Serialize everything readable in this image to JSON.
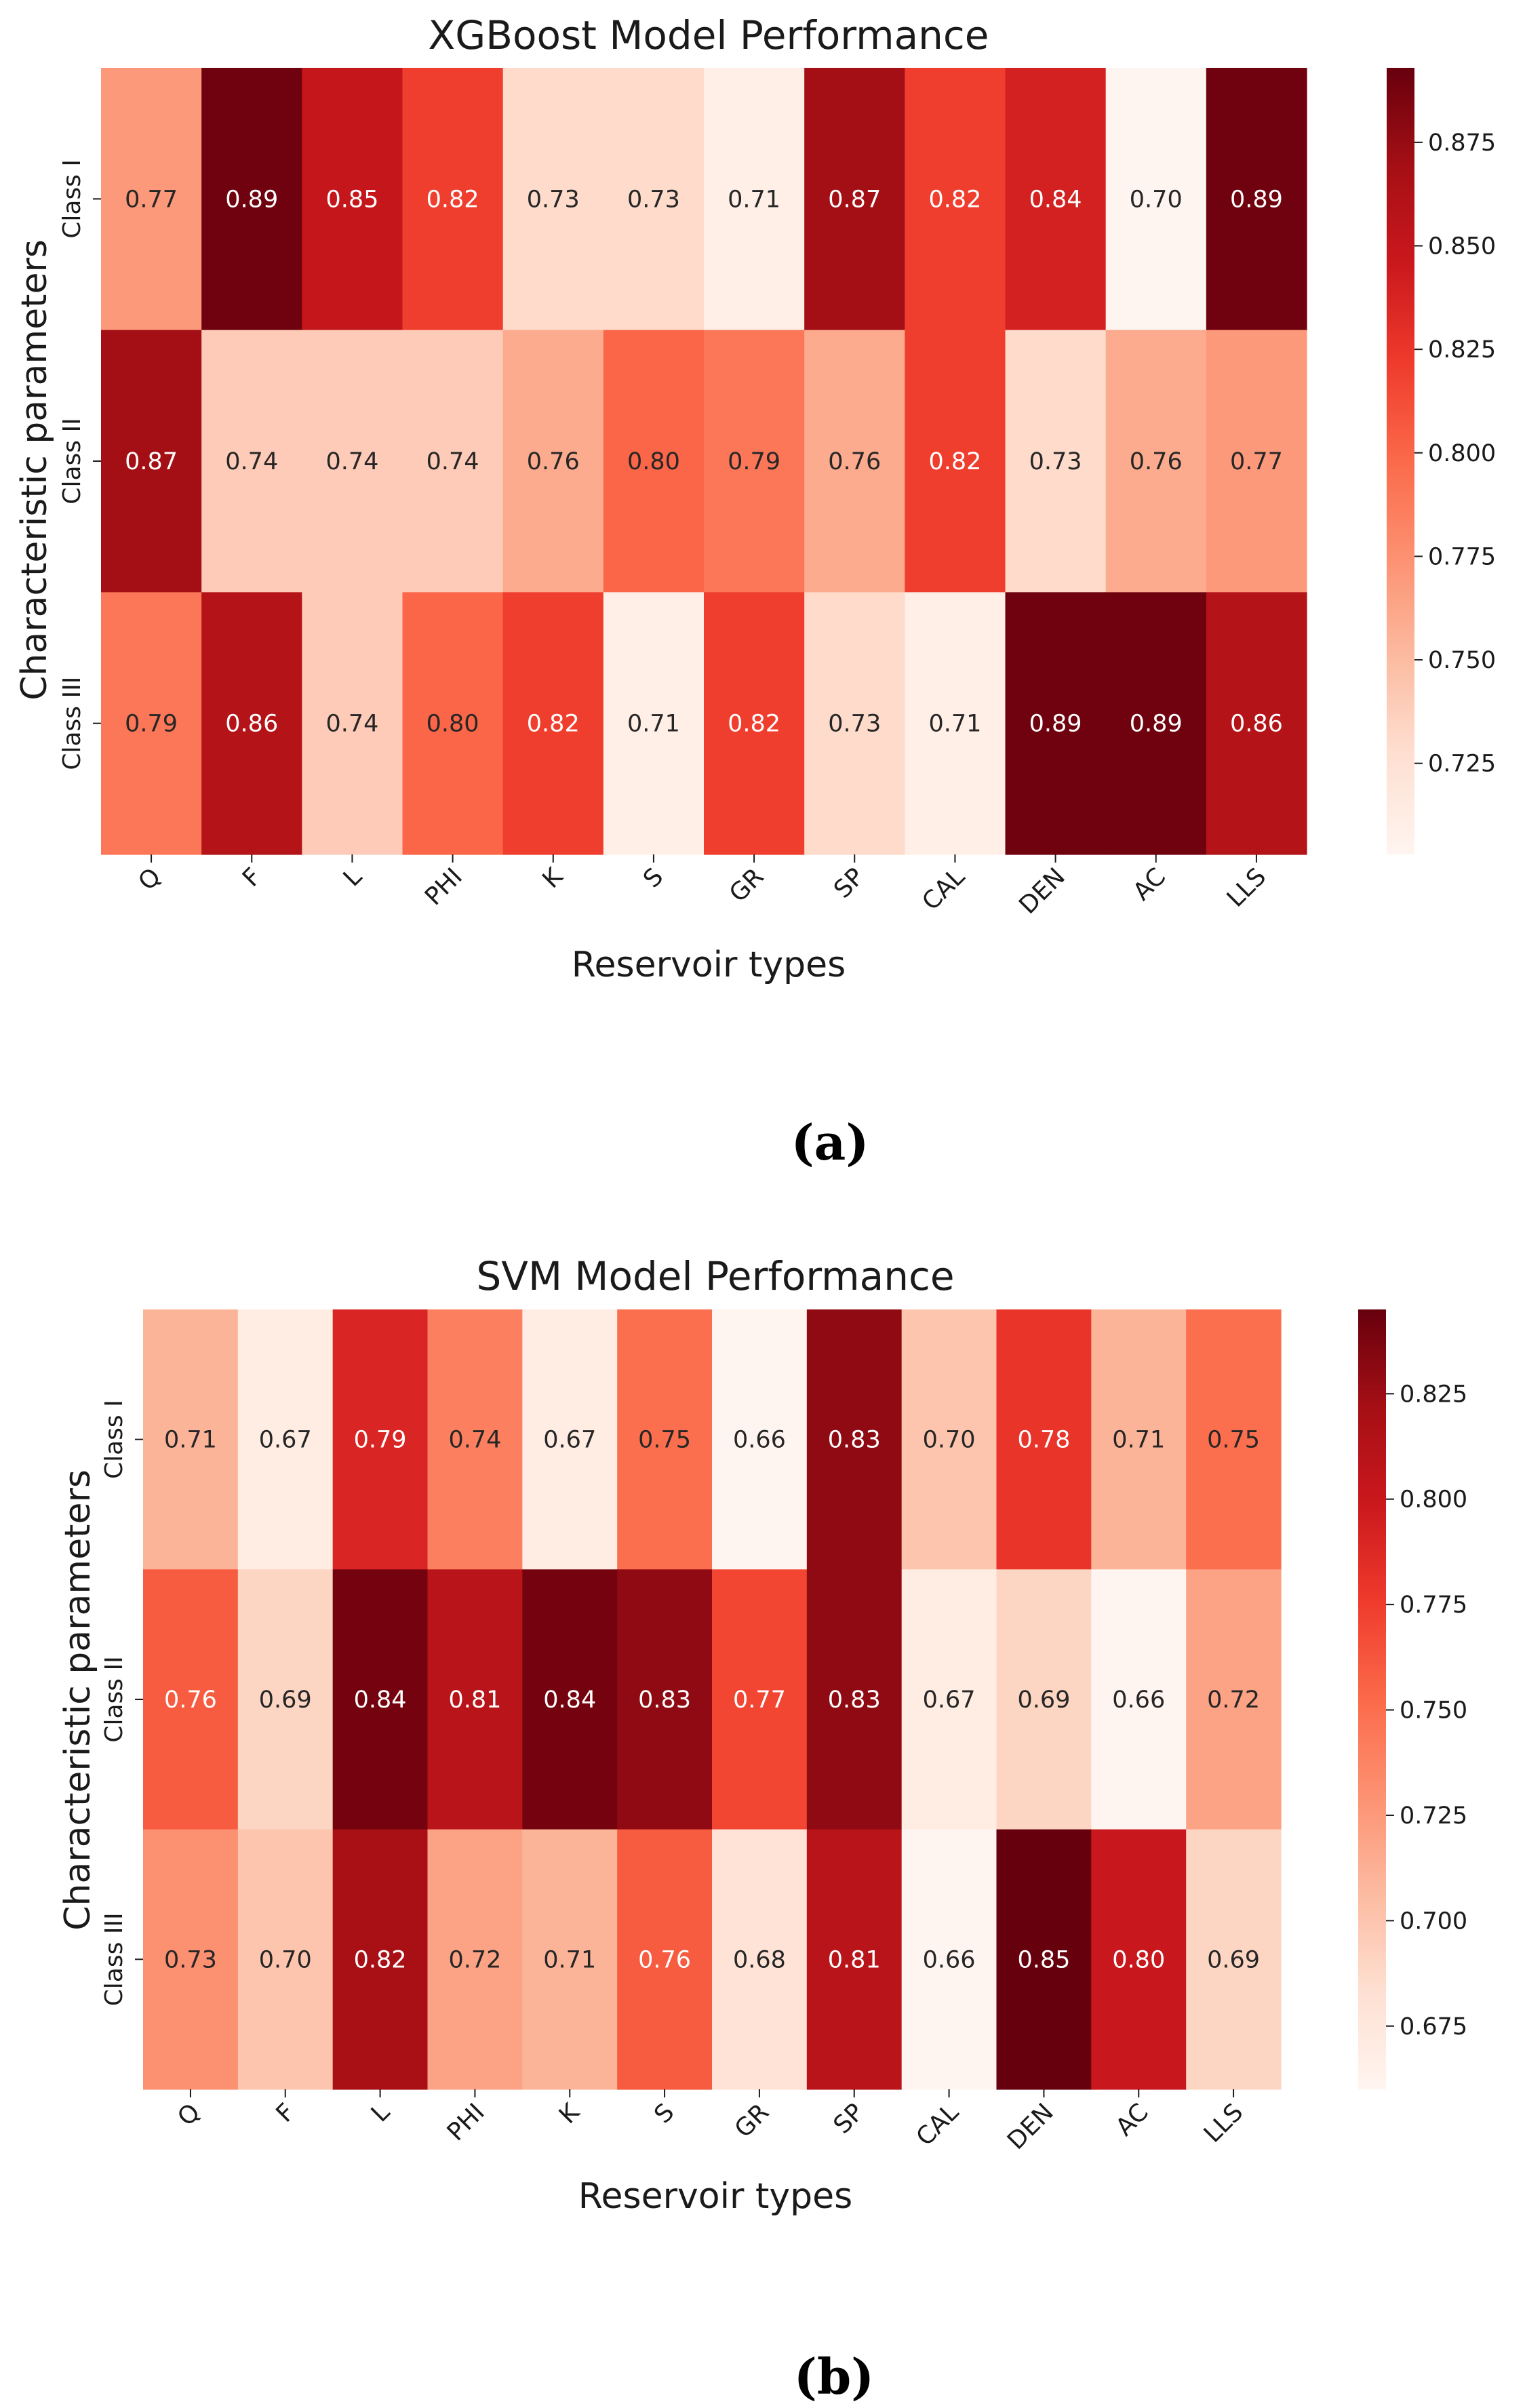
{
  "chart_data": [
    {
      "type": "heatmap",
      "title": "XGBoost Model Performance",
      "xlabel": "Reservoir types",
      "ylabel": "Characteristic parameters",
      "rows": [
        "Class I",
        "Class II",
        "Class III"
      ],
      "columns": [
        "Q",
        "F",
        "L",
        "PHI",
        "K",
        "S",
        "GR",
        "SP",
        "CAL",
        "DEN",
        "AC",
        "LLS"
      ],
      "values": [
        [
          0.77,
          0.89,
          0.85,
          0.82,
          0.73,
          0.73,
          0.71,
          0.87,
          0.82,
          0.84,
          0.7,
          0.89
        ],
        [
          0.87,
          0.74,
          0.74,
          0.74,
          0.76,
          0.8,
          0.79,
          0.76,
          0.82,
          0.73,
          0.76,
          0.77
        ],
        [
          0.79,
          0.86,
          0.74,
          0.8,
          0.82,
          0.71,
          0.82,
          0.73,
          0.71,
          0.89,
          0.89,
          0.86
        ]
      ],
      "labels": [
        [
          "0.77",
          "0.89",
          "0.85",
          "0.82",
          "0.73",
          "0.73",
          "0.71",
          "0.87",
          "0.82",
          "0.84",
          "0.70",
          "0.89"
        ],
        [
          "0.87",
          "0.74",
          "0.74",
          "0.74",
          "0.76",
          "0.80",
          "0.79",
          "0.76",
          "0.82",
          "0.73",
          "0.76",
          "0.77"
        ],
        [
          "0.79",
          "0.86",
          "0.74",
          "0.80",
          "0.82",
          "0.71",
          "0.82",
          "0.73",
          "0.71",
          "0.89",
          "0.89",
          "0.86"
        ]
      ],
      "colorbar_range": [
        0.703,
        0.893
      ],
      "colorbar_ticks": [
        0.725,
        0.75,
        0.775,
        0.8,
        0.825,
        0.85,
        0.875
      ],
      "colorbar_tick_labels": [
        "0.725",
        "0.750",
        "0.775",
        "0.800",
        "0.825",
        "0.850",
        "0.875"
      ],
      "colormap": "Reds",
      "panel_label": "(a)"
    },
    {
      "type": "heatmap",
      "title": "SVM Model Performance",
      "xlabel": "Reservoir types",
      "ylabel": "Characteristic parameters",
      "rows": [
        "Class I",
        "Class II",
        "Class III"
      ],
      "columns": [
        "Q",
        "F",
        "L",
        "PHI",
        "K",
        "S",
        "GR",
        "SP",
        "CAL",
        "DEN",
        "AC",
        "LLS"
      ],
      "values": [
        [
          0.71,
          0.67,
          0.79,
          0.74,
          0.67,
          0.75,
          0.66,
          0.83,
          0.7,
          0.78,
          0.71,
          0.75
        ],
        [
          0.76,
          0.69,
          0.84,
          0.81,
          0.84,
          0.83,
          0.77,
          0.83,
          0.67,
          0.69,
          0.66,
          0.72
        ],
        [
          0.73,
          0.7,
          0.82,
          0.72,
          0.71,
          0.76,
          0.68,
          0.81,
          0.66,
          0.85,
          0.8,
          0.69
        ]
      ],
      "labels": [
        [
          "0.71",
          "0.67",
          "0.79",
          "0.74",
          "0.67",
          "0.75",
          "0.66",
          "0.83",
          "0.70",
          "0.78",
          "0.71",
          "0.75"
        ],
        [
          "0.76",
          "0.69",
          "0.84",
          "0.81",
          "0.84",
          "0.83",
          "0.77",
          "0.83",
          "0.67",
          "0.69",
          "0.66",
          "0.72"
        ],
        [
          "0.73",
          "0.70",
          "0.82",
          "0.72",
          "0.71",
          "0.76",
          "0.68",
          "0.81",
          "0.66",
          "0.85",
          "0.80",
          "0.69"
        ]
      ],
      "colorbar_range": [
        0.66,
        0.845
      ],
      "colorbar_ticks": [
        0.675,
        0.7,
        0.725,
        0.75,
        0.775,
        0.8,
        0.825
      ],
      "colorbar_tick_labels": [
        "0.675",
        "0.700",
        "0.725",
        "0.750",
        "0.775",
        "0.800",
        "0.825"
      ],
      "colormap": "Reds",
      "panel_label": "(b)"
    }
  ],
  "colormap_stops": [
    "#fff5f0",
    "#fee0d2",
    "#fcbba1",
    "#fc9272",
    "#fb6a4a",
    "#ef3b2c",
    "#cb181d",
    "#a50f15",
    "#67000d"
  ]
}
